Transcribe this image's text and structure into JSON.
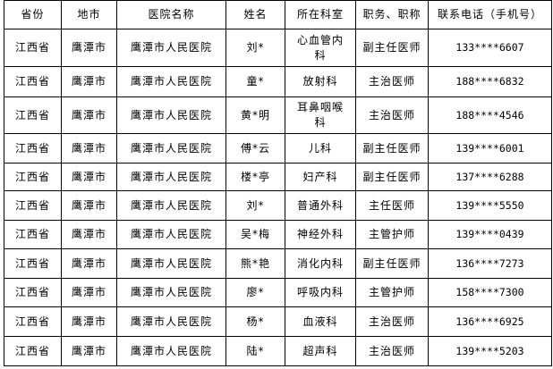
{
  "headers": [
    "省份",
    "地市",
    "医院名称",
    "姓名",
    "所在科室",
    "职务、职称",
    "联系电话（手机号）"
  ],
  "rows": [
    [
      "江西省",
      "鹰潭市",
      "鹰潭市人民医院",
      "刘*",
      "心血管内科",
      "副主任医师",
      "133****6607"
    ],
    [
      "江西省",
      "鹰潭市",
      "鹰潭市人民医院",
      "童*",
      "放射科",
      "主治医师",
      "188****6832"
    ],
    [
      "江西省",
      "鹰潭市",
      "鹰潭市人民医院",
      "黄*明",
      "耳鼻咽喉科",
      "主治医师",
      "188****4546"
    ],
    [
      "江西省",
      "鹰潭市",
      "鹰潭市人民医院",
      "傅*云",
      "儿科",
      "副主任医师",
      "139****6001"
    ],
    [
      "江西省",
      "鹰潭市",
      "鹰潭市人民医院",
      "楼*亭",
      "妇产科",
      "副主任医师",
      "137****6288"
    ],
    [
      "江西省",
      "鹰潭市",
      "鹰潭市人民医院",
      "刘*",
      "普通外科",
      "主任医师",
      "139****5550"
    ],
    [
      "江西省",
      "鹰潭市",
      "鹰潭市人民医院",
      "吴*梅",
      "神经外科",
      "主管护师",
      "139****0439"
    ],
    [
      "江西省",
      "鹰潭市",
      "鹰潭市人民医院",
      "熊*艳",
      "消化内科",
      "副主任医师",
      "136****7273"
    ],
    [
      "江西省",
      "鹰潭市",
      "鹰潭市人民医院",
      "廖*",
      "呼吸内科",
      "主管护师",
      "158****7300"
    ],
    [
      "江西省",
      "鹰潭市",
      "鹰潭市人民医院",
      "杨*",
      "血液科",
      "主治医师",
      "136****6925"
    ],
    [
      "江西省",
      "鹰潭市",
      "鹰潭市人民医院",
      "陆*",
      "超声科",
      "主治医师",
      "139****5203"
    ]
  ]
}
